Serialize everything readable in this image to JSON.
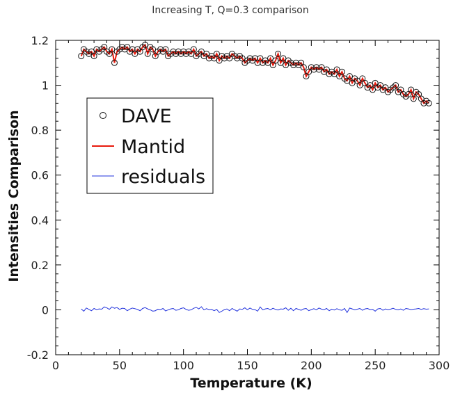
{
  "chart_data": {
    "type": "line",
    "title": "Increasing T, Q=0.3 comparison",
    "xlabel": "Temperature (K)",
    "ylabel": "Intensities Comparison",
    "xlim": [
      0,
      300
    ],
    "ylim": [
      -0.2,
      1.2
    ],
    "x_ticks": [
      0,
      50,
      100,
      150,
      200,
      250,
      300
    ],
    "y_ticks": [
      -0.2,
      0,
      0.2,
      0.4,
      0.6,
      0.8,
      1,
      1.2
    ],
    "x_tick_labels": [
      "0",
      "50",
      "100",
      "150",
      "200",
      "250",
      "300"
    ],
    "y_tick_labels": [
      "-0.2",
      "0",
      "0.2",
      "0.4",
      "0.6",
      "0.8",
      "1",
      "1.2"
    ],
    "grid": false,
    "legend_position": "upper-left",
    "x": [
      20,
      22,
      24,
      26,
      28,
      30,
      32,
      34,
      36,
      38,
      40,
      42,
      44,
      46,
      48,
      50,
      52,
      54,
      56,
      58,
      60,
      62,
      64,
      66,
      68,
      70,
      72,
      74,
      76,
      78,
      80,
      82,
      84,
      86,
      88,
      90,
      92,
      94,
      96,
      98,
      100,
      102,
      104,
      106,
      108,
      110,
      112,
      114,
      116,
      118,
      120,
      122,
      124,
      126,
      128,
      130,
      132,
      134,
      136,
      138,
      140,
      142,
      144,
      146,
      148,
      150,
      152,
      154,
      156,
      158,
      160,
      162,
      164,
      166,
      168,
      170,
      172,
      174,
      176,
      178,
      180,
      182,
      184,
      186,
      188,
      190,
      192,
      194,
      196,
      198,
      200,
      202,
      204,
      206,
      208,
      210,
      212,
      214,
      216,
      218,
      220,
      222,
      224,
      226,
      228,
      230,
      232,
      234,
      236,
      238,
      240,
      242,
      244,
      246,
      248,
      250,
      252,
      254,
      256,
      258,
      260,
      262,
      264,
      266,
      268,
      270,
      272,
      274,
      276,
      278,
      280,
      282,
      284,
      286,
      288,
      290,
      292
    ],
    "series": [
      {
        "name": "DAVE",
        "style": "open-circle",
        "color": "#111111",
        "values": [
          1.13,
          1.16,
          1.15,
          1.14,
          1.15,
          1.13,
          1.16,
          1.15,
          1.16,
          1.17,
          1.15,
          1.14,
          1.16,
          1.1,
          1.15,
          1.16,
          1.17,
          1.16,
          1.17,
          1.15,
          1.16,
          1.14,
          1.16,
          1.15,
          1.17,
          1.18,
          1.14,
          1.17,
          1.16,
          1.13,
          1.15,
          1.16,
          1.15,
          1.16,
          1.13,
          1.14,
          1.15,
          1.14,
          1.15,
          1.14,
          1.15,
          1.14,
          1.15,
          1.14,
          1.16,
          1.13,
          1.14,
          1.15,
          1.13,
          1.14,
          1.12,
          1.13,
          1.12,
          1.14,
          1.11,
          1.13,
          1.12,
          1.13,
          1.12,
          1.14,
          1.13,
          1.12,
          1.13,
          1.12,
          1.1,
          1.11,
          1.12,
          1.11,
          1.12,
          1.1,
          1.12,
          1.1,
          1.11,
          1.1,
          1.12,
          1.09,
          1.11,
          1.14,
          1.1,
          1.12,
          1.09,
          1.11,
          1.1,
          1.09,
          1.1,
          1.09,
          1.1,
          1.08,
          1.04,
          1.06,
          1.08,
          1.07,
          1.08,
          1.07,
          1.08,
          1.06,
          1.07,
          1.05,
          1.06,
          1.05,
          1.07,
          1.04,
          1.06,
          1.03,
          1.02,
          1.04,
          1.01,
          1.03,
          1.02,
          1.0,
          1.03,
          1.01,
          0.99,
          1.0,
          0.98,
          1.01,
          0.99,
          1.0,
          0.98,
          0.99,
          0.97,
          0.98,
          0.99,
          1.0,
          0.97,
          0.98,
          0.96,
          0.95,
          0.96,
          0.98,
          0.94,
          0.97,
          0.96,
          0.94,
          0.92,
          0.93,
          0.92
        ]
      },
      {
        "name": "Mantid",
        "style": "line",
        "color": "#e8190c",
        "values": [
          1.13,
          1.16,
          1.15,
          1.14,
          1.15,
          1.13,
          1.16,
          1.15,
          1.16,
          1.17,
          1.15,
          1.14,
          1.16,
          1.1,
          1.15,
          1.16,
          1.17,
          1.16,
          1.17,
          1.15,
          1.16,
          1.14,
          1.16,
          1.15,
          1.17,
          1.18,
          1.14,
          1.17,
          1.16,
          1.13,
          1.15,
          1.16,
          1.15,
          1.16,
          1.13,
          1.14,
          1.15,
          1.14,
          1.15,
          1.14,
          1.15,
          1.14,
          1.15,
          1.14,
          1.16,
          1.13,
          1.14,
          1.15,
          1.13,
          1.14,
          1.12,
          1.13,
          1.12,
          1.14,
          1.11,
          1.13,
          1.12,
          1.13,
          1.12,
          1.14,
          1.13,
          1.12,
          1.13,
          1.12,
          1.1,
          1.11,
          1.12,
          1.11,
          1.12,
          1.1,
          1.12,
          1.1,
          1.11,
          1.1,
          1.12,
          1.09,
          1.11,
          1.14,
          1.1,
          1.12,
          1.09,
          1.11,
          1.1,
          1.09,
          1.1,
          1.09,
          1.1,
          1.08,
          1.04,
          1.06,
          1.08,
          1.07,
          1.08,
          1.07,
          1.08,
          1.06,
          1.07,
          1.05,
          1.06,
          1.05,
          1.07,
          1.04,
          1.06,
          1.03,
          1.02,
          1.04,
          1.01,
          1.03,
          1.02,
          1.0,
          1.03,
          1.01,
          0.99,
          1.0,
          0.98,
          1.01,
          0.99,
          1.0,
          0.98,
          0.99,
          0.97,
          0.98,
          0.99,
          1.0,
          0.97,
          0.98,
          0.96,
          0.95,
          0.96,
          0.98,
          0.94,
          0.97,
          0.96,
          0.94,
          0.92,
          0.93,
          0.92
        ]
      },
      {
        "name": "residuals",
        "style": "line",
        "color": "#2233dd",
        "values": [
          0.004,
          -0.006,
          0.008,
          0.002,
          -0.004,
          0.006,
          0.001,
          0.004,
          0.003,
          0.013,
          0.009,
          0.002,
          0.013,
          0.007,
          0.01,
          0.002,
          0.007,
          0.006,
          -0.004,
          0.003,
          0.008,
          0.005,
          0.002,
          -0.004,
          0.006,
          0.01,
          0.004,
          0.0,
          -0.006,
          -0.004,
          0.003,
          0.001,
          0.006,
          -0.005,
          0.0,
          0.004,
          0.006,
          -0.002,
          0.0,
          0.006,
          0.009,
          0.002,
          -0.002,
          0.0,
          0.007,
          0.011,
          0.004,
          0.014,
          0.0,
          0.005,
          0.001,
          0.002,
          -0.004,
          0.002,
          -0.012,
          -0.006,
          0.001,
          0.004,
          -0.004,
          0.006,
          0.0,
          -0.006,
          0.004,
          0.002,
          0.009,
          0.0,
          0.008,
          0.002,
          0.001,
          -0.006,
          0.013,
          0.0,
          0.004,
          0.006,
          0.0,
          0.007,
          0.002,
          -0.001,
          0.004,
          0.003,
          0.009,
          -0.002,
          0.007,
          -0.004,
          0.006,
          0.002,
          -0.002,
          0.004,
          0.006,
          -0.004,
          0.001,
          0.005,
          0.0,
          0.008,
          0.003,
          0.001,
          0.006,
          -0.004,
          0.003,
          -0.001,
          0.005,
          0.0,
          -0.002,
          0.006,
          -0.012,
          0.008,
          0.004,
          0.0,
          0.003,
          0.006,
          -0.002,
          0.004,
          0.006,
          0.001,
          0.002,
          -0.006,
          0.004,
          0.006,
          -0.002,
          0.004,
          0.001,
          0.003,
          0.007,
          0.002,
          0.0,
          0.004,
          -0.002,
          0.006,
          0.004,
          0.001,
          0.003,
          0.004,
          0.006,
          0.002,
          0.005,
          0.003,
          0.004
        ]
      }
    ]
  }
}
